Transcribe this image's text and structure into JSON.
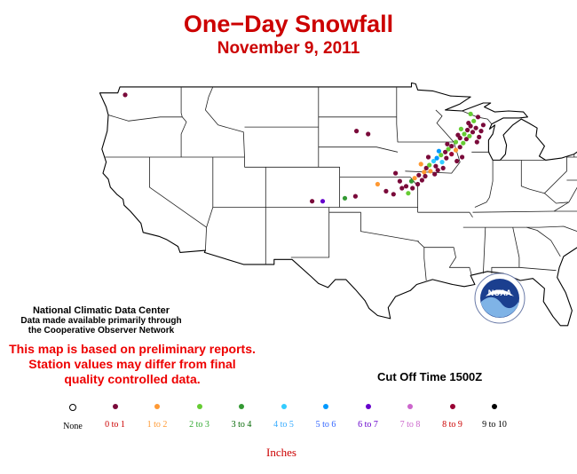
{
  "header": {
    "title": "One−Day Snowfall",
    "date": "November 9, 2011"
  },
  "credit": {
    "line1": "National Climatic Data Center",
    "line2": "Data made available primarily through",
    "line3": "the Cooperative Observer Network"
  },
  "notice": {
    "line1": "This map is based on preliminary reports.",
    "line2": "Station values may differ from final",
    "line3": "quality controlled data."
  },
  "cutoff": "Cut Off Time 1500Z",
  "units": "Inches",
  "logo": {
    "text": "NOAA",
    "ring_text": "NATIONAL OCEANIC AND ATMOSPHERIC ADMINISTRATION · U.S. DEPARTMENT OF COMMERCE"
  },
  "legend": [
    {
      "label": "None",
      "color": "#ffffff",
      "label_color": "#000000"
    },
    {
      "label": "0 to 1",
      "color": "#7a0a3a",
      "label_color": "#cc0000"
    },
    {
      "label": "1 to 2",
      "color": "#ff9933",
      "label_color": "#ff9933"
    },
    {
      "label": "2 to 3",
      "color": "#66cc33",
      "label_color": "#33aa33"
    },
    {
      "label": "3 to 4",
      "color": "#339933",
      "label_color": "#006600"
    },
    {
      "label": "4 to 5",
      "color": "#33ccff",
      "label_color": "#33aaff"
    },
    {
      "label": "5 to 6",
      "color": "#0099ff",
      "label_color": "#3366ff"
    },
    {
      "label": "6 to 7",
      "color": "#6600cc",
      "label_color": "#6600cc"
    },
    {
      "label": "7 to 8",
      "color": "#cc66cc",
      "label_color": "#cc66cc"
    },
    {
      "label": "8 to 9",
      "color": "#990033",
      "label_color": "#cc0000"
    },
    {
      "label": "9 to 10",
      "color": "#000000",
      "label_color": "#000000"
    }
  ],
  "stations": [
    {
      "lon": -122.3,
      "lat": 48.2,
      "cat": 1
    },
    {
      "lon": -100.4,
      "lat": 44.6,
      "cat": 1
    },
    {
      "lon": -99.3,
      "lat": 44.3,
      "cat": 1
    },
    {
      "lon": -98.4,
      "lat": 39.3,
      "cat": 2
    },
    {
      "lon": -96.7,
      "lat": 40.4,
      "cat": 1
    },
    {
      "lon": -96.3,
      "lat": 39.6,
      "cat": 1
    },
    {
      "lon": -95.5,
      "lat": 38.4,
      "cat": 3
    },
    {
      "lon": -104.6,
      "lat": 37.6,
      "cat": 1
    },
    {
      "lon": -103.6,
      "lat": 37.6,
      "cat": 7
    },
    {
      "lon": -101.5,
      "lat": 37.9,
      "cat": 4
    },
    {
      "lon": -100.5,
      "lat": 38.1,
      "cat": 1
    },
    {
      "lon": -97.6,
      "lat": 38.6,
      "cat": 1
    },
    {
      "lon": -96.9,
      "lat": 38.3,
      "cat": 1
    },
    {
      "lon": -96.1,
      "lat": 38.9,
      "cat": 1
    },
    {
      "lon": -95.7,
      "lat": 39.1,
      "cat": 1
    },
    {
      "lon": -95.2,
      "lat": 39.6,
      "cat": 4
    },
    {
      "lon": -94.9,
      "lat": 39.9,
      "cat": 2
    },
    {
      "lon": -94.5,
      "lat": 40.2,
      "cat": 1
    },
    {
      "lon": -94.0,
      "lat": 40.5,
      "cat": 2
    },
    {
      "lon": -93.8,
      "lat": 40.9,
      "cat": 1
    },
    {
      "lon": -93.5,
      "lat": 41.2,
      "cat": 3
    },
    {
      "lon": -93.1,
      "lat": 41.6,
      "cat": 5
    },
    {
      "lon": -92.8,
      "lat": 41.9,
      "cat": 6
    },
    {
      "lon": -92.4,
      "lat": 42.2,
      "cat": 3
    },
    {
      "lon": -92.0,
      "lat": 42.5,
      "cat": 1
    },
    {
      "lon": -91.7,
      "lat": 42.8,
      "cat": 3
    },
    {
      "lon": -91.4,
      "lat": 43.1,
      "cat": 1
    },
    {
      "lon": -91.0,
      "lat": 43.5,
      "cat": 3
    },
    {
      "lon": -90.6,
      "lat": 43.9,
      "cat": 1
    },
    {
      "lon": -90.2,
      "lat": 44.3,
      "cat": 3
    },
    {
      "lon": -89.9,
      "lat": 44.7,
      "cat": 1
    },
    {
      "lon": -89.6,
      "lat": 45.1,
      "cat": 1
    },
    {
      "lon": -89.3,
      "lat": 45.6,
      "cat": 3
    },
    {
      "lon": -93.9,
      "lat": 40.1,
      "cat": 1
    },
    {
      "lon": -93.4,
      "lat": 40.6,
      "cat": 2
    },
    {
      "lon": -92.9,
      "lat": 41.1,
      "cat": 1
    },
    {
      "lon": -92.3,
      "lat": 41.5,
      "cat": 5
    },
    {
      "lon": -91.9,
      "lat": 41.9,
      "cat": 1
    },
    {
      "lon": -91.4,
      "lat": 42.3,
      "cat": 9
    },
    {
      "lon": -91.0,
      "lat": 42.7,
      "cat": 2
    },
    {
      "lon": -90.6,
      "lat": 43.0,
      "cat": 1
    },
    {
      "lon": -90.3,
      "lat": 43.4,
      "cat": 3
    },
    {
      "lon": -90.0,
      "lat": 43.8,
      "cat": 1
    },
    {
      "lon": -89.7,
      "lat": 44.1,
      "cat": 3
    },
    {
      "lon": -89.4,
      "lat": 44.5,
      "cat": 1
    },
    {
      "lon": -89.1,
      "lat": 44.9,
      "cat": 1
    },
    {
      "lon": -95.1,
      "lat": 38.9,
      "cat": 1
    },
    {
      "lon": -94.6,
      "lat": 39.3,
      "cat": 1
    },
    {
      "lon": -94.2,
      "lat": 39.7,
      "cat": 1
    },
    {
      "lon": -92.7,
      "lat": 40.7,
      "cat": 1
    },
    {
      "lon": -92.2,
      "lat": 40.9,
      "cat": 1
    },
    {
      "lon": -93.6,
      "lat": 42.0,
      "cat": 1
    },
    {
      "lon": -92.6,
      "lat": 42.6,
      "cat": 6
    },
    {
      "lon": -91.8,
      "lat": 43.3,
      "cat": 1
    },
    {
      "lon": -90.8,
      "lat": 44.2,
      "cat": 1
    },
    {
      "lon": -90.5,
      "lat": 44.8,
      "cat": 3
    },
    {
      "lon": -89.8,
      "lat": 45.4,
      "cat": 1
    },
    {
      "lon": -89.0,
      "lat": 43.5,
      "cat": 1
    },
    {
      "lon": -88.8,
      "lat": 44.0,
      "cat": 1
    },
    {
      "lon": -88.6,
      "lat": 44.6,
      "cat": 1
    },
    {
      "lon": -88.4,
      "lat": 45.2,
      "cat": 1
    },
    {
      "lon": -89.6,
      "lat": 46.3,
      "cat": 3
    },
    {
      "lon": -88.9,
      "lat": 46.0,
      "cat": 1
    },
    {
      "lon": -94.3,
      "lat": 41.3,
      "cat": 2
    },
    {
      "lon": -93.0,
      "lat": 40.3,
      "cat": 1
    },
    {
      "lon": -90.9,
      "lat": 41.6,
      "cat": 1
    },
    {
      "lon": -90.4,
      "lat": 42.0,
      "cat": 1
    }
  ]
}
